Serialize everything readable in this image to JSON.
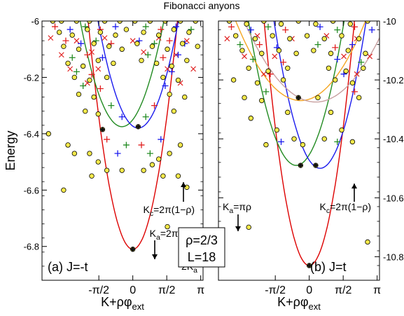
{
  "figure": {
    "title": "Fibonacci anyons",
    "center_box": {
      "line1": "ρ=2/3",
      "line2": "L=18"
    }
  },
  "chart_data": [
    {
      "type": "scatter",
      "panel_label": "(a) J=-t",
      "xlabel": "K+ρφ",
      "xlabel_sub": "ext",
      "ylabel": "Energy",
      "xlim": [
        -4.2,
        3.25
      ],
      "ylim": [
        -6.92,
        -6.0
      ],
      "xticks": [
        {
          "v": -1.5708,
          "label": "-π/2"
        },
        {
          "v": 0,
          "label": "0"
        },
        {
          "v": 1.5708,
          "label": "π/2"
        },
        {
          "v": 3.1416,
          "label": "π"
        }
      ],
      "yticks": [
        {
          "v": -6.0,
          "label": "-6"
        },
        {
          "v": -6.2,
          "label": "-6.2"
        },
        {
          "v": -6.4,
          "label": "-6.4"
        },
        {
          "v": -6.6,
          "label": "-6.6"
        },
        {
          "v": -6.8,
          "label": "-6.8"
        }
      ],
      "curves": [
        {
          "color": "#dd0000",
          "vertex": [
            0,
            -6.81
          ],
          "a": 0.19
        },
        {
          "color": "#228b22",
          "vertex": [
            -0.5,
            -6.375
          ],
          "a": 0.1
        },
        {
          "color": "#1a1aee",
          "vertex": [
            0.25,
            -6.38
          ],
          "a": 0.11
        }
      ],
      "annotations": [
        {
          "text": "K",
          "sub": "c",
          "rest": "=2π(1−ρ)"
        },
        {
          "text": "K",
          "sub": "a",
          "rest": "=2π/3 ρ"
        },
        {
          "text": "2K",
          "sub": "a",
          "rest": ""
        }
      ],
      "special_points": [
        {
          "x": 0,
          "y": -6.81
        },
        {
          "x": -1.4,
          "y": -6.385
        },
        {
          "x": 0.25,
          "y": -6.375
        }
      ],
      "points": {
        "circle": [
          [
            -3.7,
            -6.0
          ],
          [
            -3.3,
            -6.0
          ],
          [
            -2.6,
            -6.0
          ],
          [
            -2.0,
            -6.0
          ],
          [
            -1.3,
            -6.0
          ],
          [
            -0.6,
            -6.0
          ],
          [
            0.1,
            -6.0
          ],
          [
            0.8,
            -6.0
          ],
          [
            1.5,
            -6.0
          ],
          [
            2.2,
            -6.0
          ],
          [
            2.9,
            -6.0
          ],
          [
            -3.4,
            -6.04
          ],
          [
            -2.8,
            -6.05
          ],
          [
            -2.1,
            -6.03
          ],
          [
            -1.5,
            -6.04
          ],
          [
            -0.8,
            -6.05
          ],
          [
            -0.3,
            -6.03
          ],
          [
            0.5,
            -6.04
          ],
          [
            1.2,
            -6.05
          ],
          [
            1.9,
            -6.03
          ],
          [
            2.6,
            -6.04
          ],
          [
            -3.2,
            -6.09
          ],
          [
            -2.5,
            -6.1
          ],
          [
            -1.8,
            -6.08
          ],
          [
            -1.1,
            -6.09
          ],
          [
            -0.5,
            -6.1
          ],
          [
            0.2,
            -6.08
          ],
          [
            0.9,
            -6.09
          ],
          [
            1.6,
            -6.1
          ],
          [
            2.3,
            -6.08
          ],
          [
            3.0,
            -6.09
          ],
          [
            -3.0,
            -6.15
          ],
          [
            -2.3,
            -6.16
          ],
          [
            -1.6,
            -6.14
          ],
          [
            -0.9,
            -6.15
          ],
          [
            0.4,
            -6.14
          ],
          [
            1.1,
            -6.15
          ],
          [
            1.8,
            -6.16
          ],
          [
            2.5,
            -6.14
          ],
          [
            -2.7,
            -6.2
          ],
          [
            -2.0,
            -6.21
          ],
          [
            -1.2,
            -6.2
          ],
          [
            1.4,
            -6.2
          ],
          [
            2.1,
            -6.21
          ],
          [
            -2.5,
            -6.26
          ],
          [
            -1.8,
            -6.27
          ],
          [
            1.7,
            -6.26
          ],
          [
            2.4,
            -6.27
          ],
          [
            -2.2,
            -6.32
          ],
          [
            -1.6,
            -6.33
          ],
          [
            1.9,
            -6.32
          ],
          [
            -1.4,
            -6.385
          ],
          [
            0.25,
            -6.375
          ],
          [
            -3.9,
            -6.4
          ],
          [
            -3.0,
            -6.44
          ],
          [
            2.2,
            -6.44
          ],
          [
            -2.7,
            -6.47
          ],
          [
            -2.0,
            -6.47
          ],
          [
            -1.6,
            -6.5
          ],
          [
            1.2,
            -6.49
          ],
          [
            1.7,
            -6.47
          ],
          [
            -1.2,
            -6.53
          ],
          [
            -0.5,
            -6.53
          ],
          [
            0.5,
            -6.53
          ],
          [
            0.9,
            -6.51
          ],
          [
            -1.9,
            -6.55
          ],
          [
            1.4,
            -6.55
          ],
          [
            2.1,
            -6.55
          ],
          [
            2.5,
            -6.59
          ],
          [
            -3.2,
            -6.6
          ],
          [
            1.6,
            -6.73
          ],
          [
            0,
            -6.81
          ]
        ],
        "plus": [
          [
            -3.6,
            -6.02
          ],
          [
            -2.9,
            -6.03
          ],
          [
            -2.2,
            -6.02
          ],
          [
            -1.5,
            -6.03
          ],
          [
            -0.8,
            -6.02
          ],
          [
            0.6,
            -6.02
          ],
          [
            1.3,
            -6.03
          ],
          [
            2.0,
            -6.02
          ],
          [
            2.7,
            -6.03
          ],
          [
            -3.1,
            -6.07
          ],
          [
            -2.4,
            -6.08
          ],
          [
            -1.7,
            -6.07
          ],
          [
            -1.0,
            -6.08
          ],
          [
            0.3,
            -6.07
          ],
          [
            1.0,
            -6.08
          ],
          [
            1.7,
            -6.07
          ],
          [
            2.4,
            -6.08
          ],
          [
            -2.8,
            -6.13
          ],
          [
            -2.1,
            -6.12
          ],
          [
            -1.4,
            -6.13
          ],
          [
            0.7,
            -6.12
          ],
          [
            1.4,
            -6.13
          ],
          [
            2.1,
            -6.12
          ],
          [
            -2.6,
            -6.18
          ],
          [
            -1.9,
            -6.19
          ],
          [
            1.8,
            -6.18
          ],
          [
            -2.3,
            -6.23
          ],
          [
            -1.5,
            -6.24
          ],
          [
            1.5,
            -6.23
          ],
          [
            -1.0,
            -6.3
          ],
          [
            1.0,
            -6.3
          ],
          [
            -0.5,
            -6.34
          ],
          [
            0.6,
            -6.34
          ],
          [
            -1.2,
            -6.42
          ],
          [
            1.3,
            -6.42
          ],
          [
            -0.3,
            -6.44
          ],
          [
            0.4,
            -6.44
          ],
          [
            -0.7,
            -6.47
          ],
          [
            0.8,
            -6.47
          ]
        ],
        "cross": [
          [
            -3.8,
            -6.06
          ],
          [
            -2.6,
            -6.07
          ],
          [
            -1.3,
            -6.06
          ],
          [
            0.0,
            -6.07
          ],
          [
            1.2,
            -6.06
          ],
          [
            2.5,
            -6.07
          ],
          [
            -3.3,
            -6.12
          ],
          [
            -1.9,
            -6.11
          ],
          [
            0.5,
            -6.11
          ],
          [
            2.0,
            -6.12
          ],
          [
            -2.9,
            -6.17
          ],
          [
            -1.6,
            -6.17
          ],
          [
            1.6,
            -6.17
          ],
          [
            2.8,
            -6.17
          ],
          [
            -2.1,
            -6.22
          ],
          [
            2.2,
            -6.22
          ]
        ]
      }
    },
    {
      "type": "scatter",
      "panel_label": "(b) J=t",
      "xlabel": "K+ρφ",
      "xlabel_sub": "ext",
      "ylabel": "",
      "xlim": [
        -4.2,
        3.25
      ],
      "ylim": [
        -10.88,
        -10.0
      ],
      "xticks": [
        {
          "v": -1.5708,
          "label": "-π/2"
        },
        {
          "v": 0,
          "label": "0"
        },
        {
          "v": 1.5708,
          "label": "π/2"
        },
        {
          "v": 3.1416,
          "label": "π"
        }
      ],
      "yticks": [
        {
          "v": -10.0,
          "label": "-10"
        },
        {
          "v": -10.2,
          "label": "-10.2"
        },
        {
          "v": -10.4,
          "label": "-10.4"
        },
        {
          "v": -10.6,
          "label": "-10.6"
        },
        {
          "v": -10.8,
          "label": "-10.8"
        }
      ],
      "curves": [
        {
          "color": "#dd0000",
          "vertex": [
            0,
            -10.83
          ],
          "a": 0.19
        },
        {
          "color": "#228b22",
          "vertex": [
            -0.6,
            -10.49
          ],
          "a": 0.1
        },
        {
          "color": "#1a1aee",
          "vertex": [
            0.5,
            -10.5
          ],
          "a": 0.11
        },
        {
          "color": "#f5a623",
          "vertex": [
            -0.4,
            -10.27
          ],
          "a": 0.03
        },
        {
          "color": "#c8a0a0",
          "vertex": [
            0.3,
            -10.275
          ],
          "a": 0.025
        }
      ],
      "annotations": [
        {
          "text": "K",
          "sub": "a",
          "rest": "=πρ"
        },
        {
          "text": "K",
          "sub": "c",
          "rest": "=2π(1−ρ)"
        }
      ],
      "special_points": [
        {
          "x": 0,
          "y": -10.83
        },
        {
          "x": -0.4,
          "y": -10.49
        },
        {
          "x": 0.3,
          "y": -10.49
        },
        {
          "x": -0.5,
          "y": -10.26
        }
      ],
      "points": {
        "circle": [
          [
            -3.7,
            -10.0
          ],
          [
            -2.9,
            -10.01
          ],
          [
            -2.1,
            -10.0
          ],
          [
            -1.3,
            -10.01
          ],
          [
            -0.5,
            -10.0
          ],
          [
            0.3,
            -10.01
          ],
          [
            1.1,
            -10.0
          ],
          [
            1.9,
            -10.01
          ],
          [
            2.7,
            -10.0
          ],
          [
            -3.4,
            -10.05
          ],
          [
            -2.5,
            -10.06
          ],
          [
            -1.7,
            -10.05
          ],
          [
            -0.9,
            -10.06
          ],
          [
            -0.1,
            -10.05
          ],
          [
            0.7,
            -10.06
          ],
          [
            1.5,
            -10.05
          ],
          [
            2.3,
            -10.06
          ],
          [
            -3.1,
            -10.1
          ],
          [
            -2.2,
            -10.11
          ],
          [
            -1.4,
            -10.1
          ],
          [
            -0.6,
            -10.11
          ],
          [
            0.2,
            -10.1
          ],
          [
            1.0,
            -10.11
          ],
          [
            1.8,
            -10.1
          ],
          [
            2.6,
            -10.11
          ],
          [
            -2.8,
            -10.16
          ],
          [
            -1.9,
            -10.17
          ],
          [
            -1.0,
            -10.16
          ],
          [
            0.9,
            -10.16
          ],
          [
            1.7,
            -10.17
          ],
          [
            2.5,
            -10.16
          ],
          [
            -3.5,
            -10.2
          ],
          [
            -2.4,
            -10.21
          ],
          [
            -1.2,
            -10.2
          ],
          [
            1.2,
            -10.2
          ],
          [
            2.0,
            -10.21
          ],
          [
            -3.0,
            -10.26
          ],
          [
            -2.2,
            -10.27
          ],
          [
            2.3,
            -10.26
          ],
          [
            -0.5,
            -10.26
          ],
          [
            0.4,
            -10.26
          ],
          [
            -2.7,
            -10.33
          ],
          [
            -1.0,
            -10.31
          ],
          [
            1.0,
            -10.31
          ],
          [
            -1.5,
            -10.37
          ],
          [
            1.5,
            -10.37
          ],
          [
            -0.7,
            -10.4
          ],
          [
            0.7,
            -10.4
          ],
          [
            -0.3,
            -10.42
          ],
          [
            -2.0,
            -10.42
          ],
          [
            2.0,
            -10.41
          ],
          [
            -0.4,
            -10.49
          ],
          [
            0.3,
            -10.49
          ],
          [
            -2.8,
            -10.7
          ],
          [
            2.7,
            -10.75
          ],
          [
            0,
            -10.83
          ]
        ],
        "plus": [
          [
            -3.6,
            -10.02
          ],
          [
            -2.7,
            -10.03
          ],
          [
            -1.9,
            -10.02
          ],
          [
            -1.1,
            -10.03
          ],
          [
            0.5,
            -10.02
          ],
          [
            1.3,
            -10.03
          ],
          [
            2.1,
            -10.02
          ],
          [
            2.9,
            -10.03
          ],
          [
            -3.2,
            -10.08
          ],
          [
            -2.3,
            -10.08
          ],
          [
            -1.5,
            -10.09
          ],
          [
            0.4,
            -10.08
          ],
          [
            1.2,
            -10.09
          ],
          [
            2.0,
            -10.08
          ],
          [
            -2.6,
            -10.13
          ],
          [
            -1.2,
            -10.14
          ],
          [
            1.3,
            -10.13
          ],
          [
            2.4,
            -10.14
          ],
          [
            -1.8,
            -10.18
          ],
          [
            1.6,
            -10.18
          ],
          [
            -2.0,
            -10.24
          ],
          [
            2.1,
            -10.24
          ],
          [
            -1.3,
            -10.41
          ],
          [
            1.3,
            -10.41
          ]
        ],
        "cross": [
          [
            -3.8,
            -10.06
          ],
          [
            -2.4,
            -10.05
          ],
          [
            -0.8,
            -10.06
          ],
          [
            0.8,
            -10.05
          ],
          [
            2.2,
            -10.06
          ],
          [
            -3.0,
            -10.12
          ],
          [
            -1.6,
            -10.12
          ],
          [
            1.6,
            -10.12
          ],
          [
            2.8,
            -10.12
          ],
          [
            -2.1,
            -10.18
          ],
          [
            2.2,
            -10.18
          ]
        ]
      }
    }
  ]
}
